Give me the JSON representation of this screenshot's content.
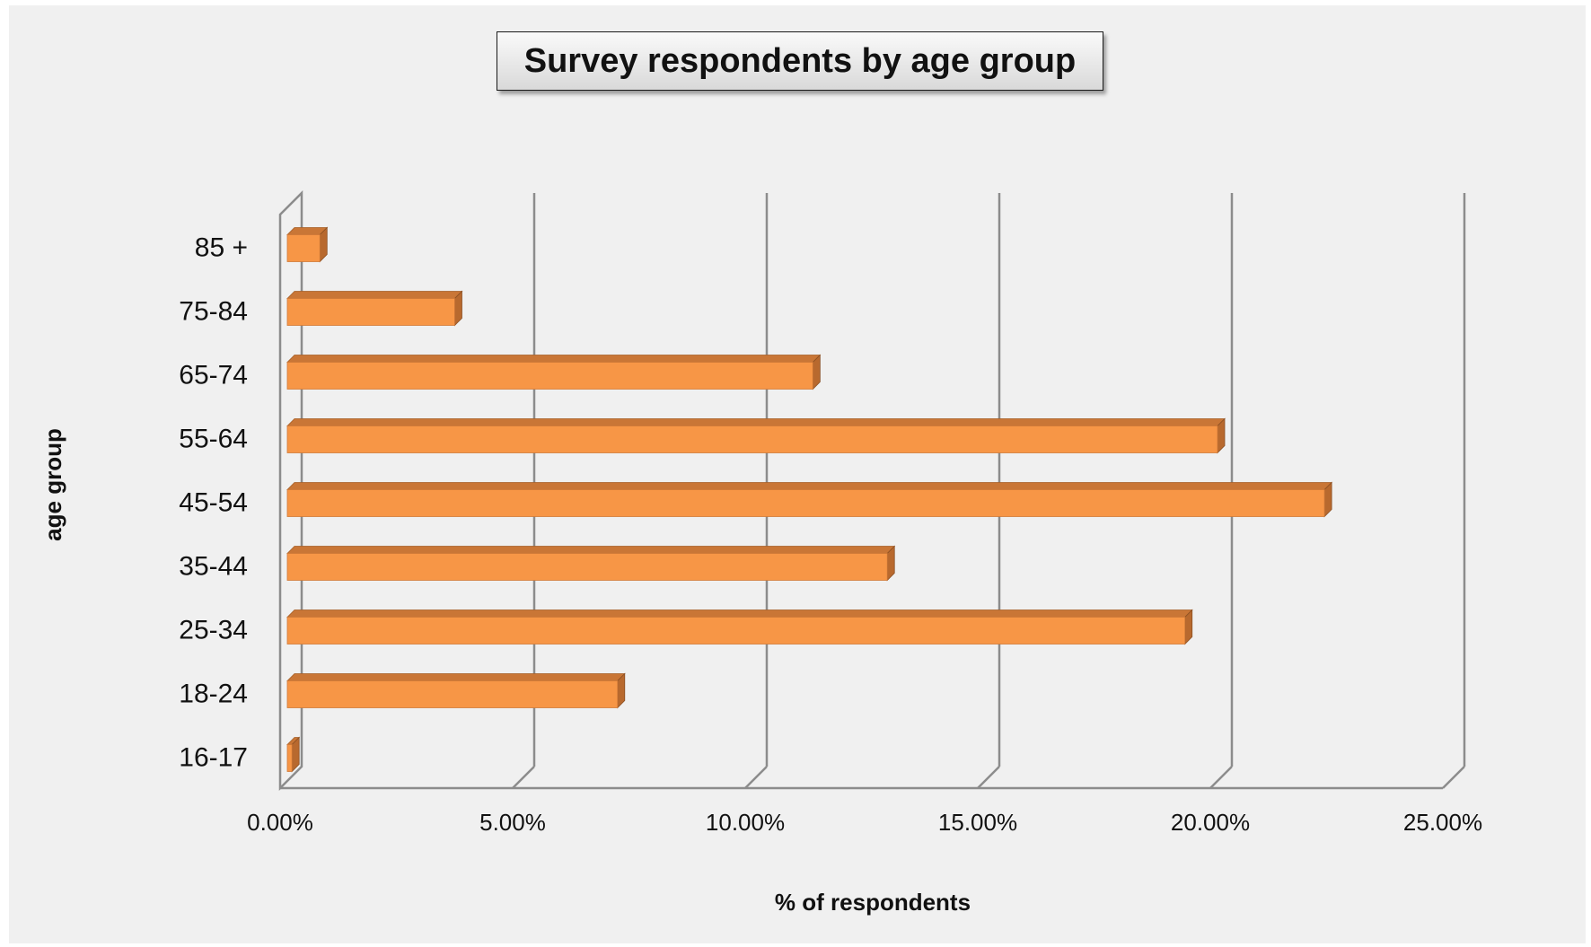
{
  "chart_data": {
    "type": "bar",
    "orientation": "horizontal",
    "title": "Survey respondents by age group",
    "xlabel": "% of respondents",
    "ylabel": "age group",
    "categories": [
      "16-17",
      "18-24",
      "25-34",
      "35-44",
      "45-54",
      "55-64",
      "65-74",
      "75-84",
      "85 +"
    ],
    "values": [
      0.1,
      7.1,
      19.3,
      12.9,
      22.3,
      20.0,
      11.3,
      3.6,
      0.7
    ],
    "value_unit": "%",
    "xlim": [
      0,
      25
    ],
    "x_ticks": [
      "0.00%",
      "5.00%",
      "10.00%",
      "15.00%",
      "20.00%",
      "25.00%"
    ],
    "grid": true,
    "legend": "none",
    "bar_color": "#f79646",
    "bar_side_color": "#b8692e",
    "bar_top_color": "#c97636"
  }
}
